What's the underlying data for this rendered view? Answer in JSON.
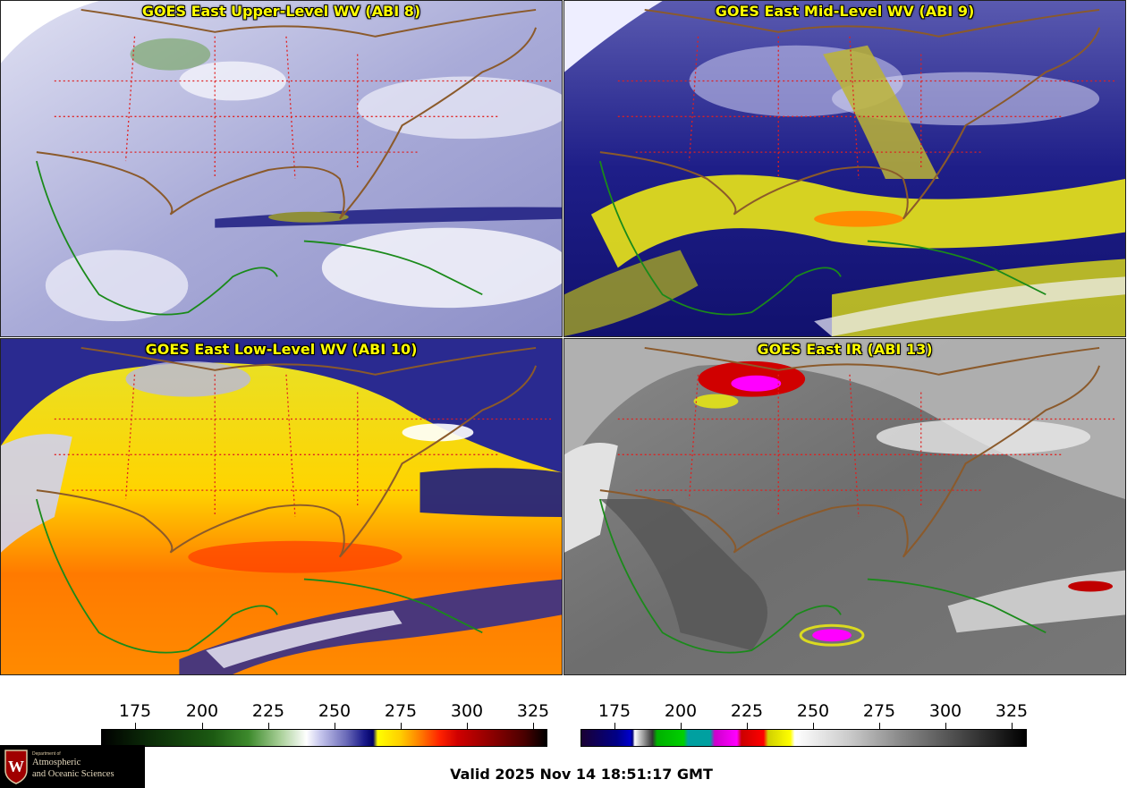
{
  "panels": [
    {
      "id": "p1",
      "title": "GOES East Upper-Level WV (ABI 8)",
      "colorscale": "wv-upper"
    },
    {
      "id": "p2",
      "title": "GOES East Mid-Level WV (ABI 9)",
      "colorscale": "wv-mid"
    },
    {
      "id": "p3",
      "title": "GOES East Low-Level WV (ABI 10)",
      "colorscale": "wv-low"
    },
    {
      "id": "p4",
      "title": "GOES East IR (ABI 13)",
      "colorscale": "ir"
    }
  ],
  "colorbars": [
    {
      "ticks": [
        "175",
        "200",
        "225",
        "250",
        "275",
        "300",
        "325"
      ]
    },
    {
      "ticks": [
        "175",
        "200",
        "225",
        "250",
        "275",
        "300",
        "325"
      ]
    }
  ],
  "logo": {
    "department": "Department of",
    "line1": "Atmospheric",
    "line2": "and Oceanic Sciences",
    "shield_letter": "W"
  },
  "valid_time": "Valid 2025 Nov 14 18:51:17 GMT",
  "colors": {
    "title": "#ffff00",
    "state_borders": "#e02020",
    "country_borders": "#8b5a2b",
    "coastline": "#1a8a1a"
  }
}
